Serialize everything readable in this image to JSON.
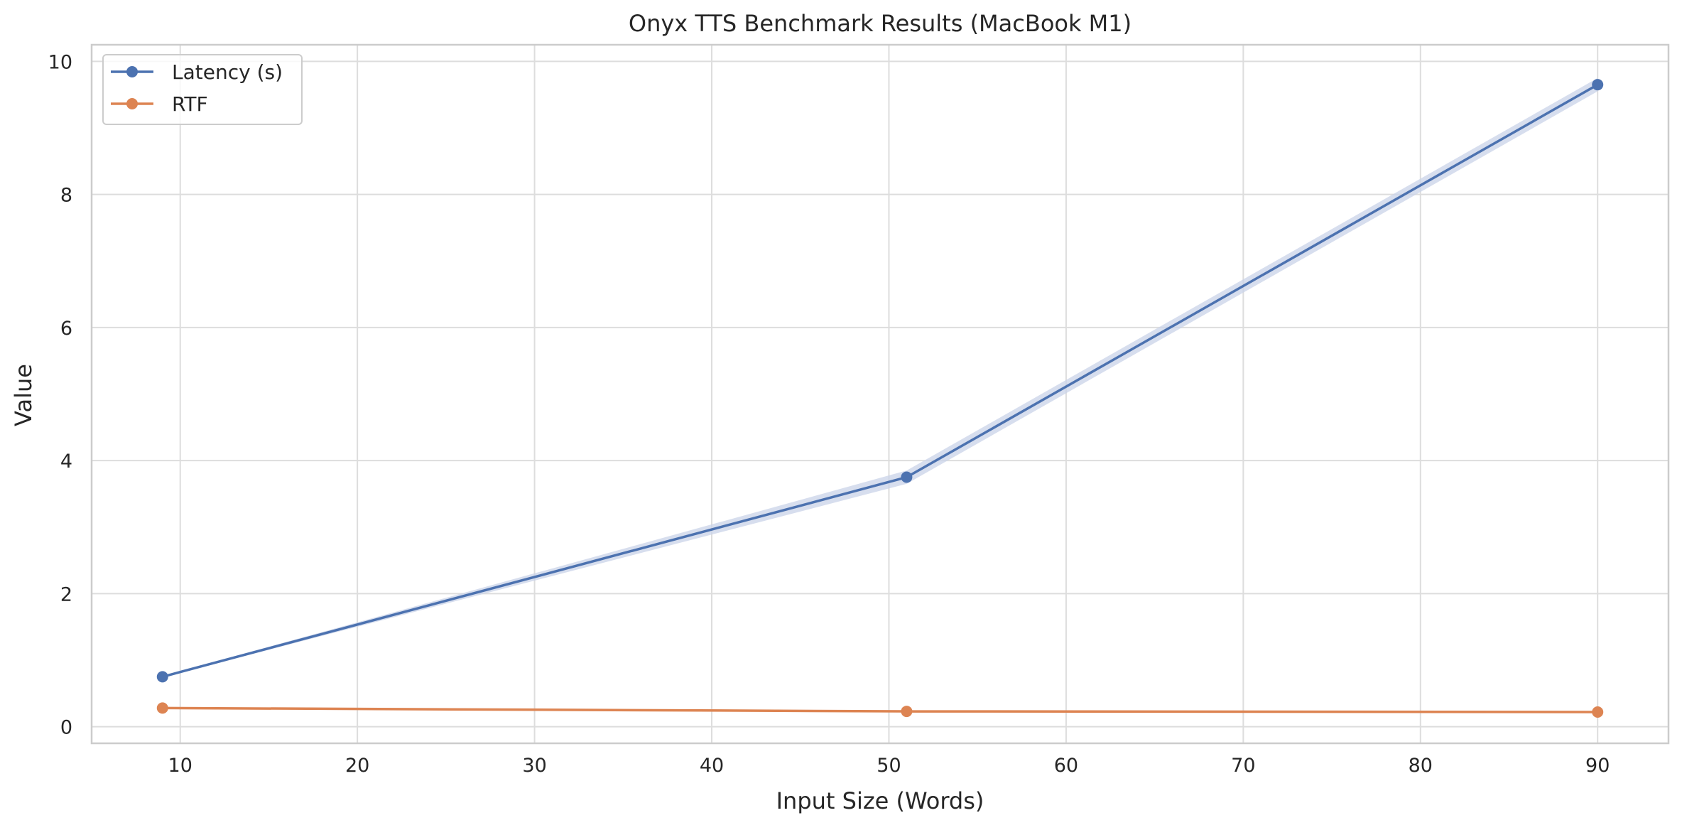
{
  "chart_data": {
    "type": "line",
    "title": "Onyx TTS Benchmark Results (MacBook M1)",
    "xlabel": "Input Size (Words)",
    "ylabel": "Value",
    "xlim": [
      5,
      94
    ],
    "ylim": [
      -0.25,
      10.25
    ],
    "x_ticks": [
      10,
      20,
      30,
      40,
      50,
      60,
      70,
      80,
      90
    ],
    "y_ticks": [
      0,
      2,
      4,
      6,
      8,
      10
    ],
    "grid": true,
    "legend_position": "top-left",
    "series": [
      {
        "name": "Latency (s)",
        "color": "#4c72b0",
        "band_color": "#c9d3e8",
        "x": [
          9,
          51,
          90
        ],
        "y": [
          0.75,
          3.75,
          9.65
        ],
        "band_halfwidth": [
          0.01,
          0.1,
          0.1
        ]
      },
      {
        "name": "RTF",
        "color": "#dd8452",
        "x": [
          9,
          51,
          90
        ],
        "y": [
          0.28,
          0.23,
          0.22
        ],
        "band_halfwidth": [
          0.0,
          0.0,
          0.0
        ]
      }
    ]
  }
}
